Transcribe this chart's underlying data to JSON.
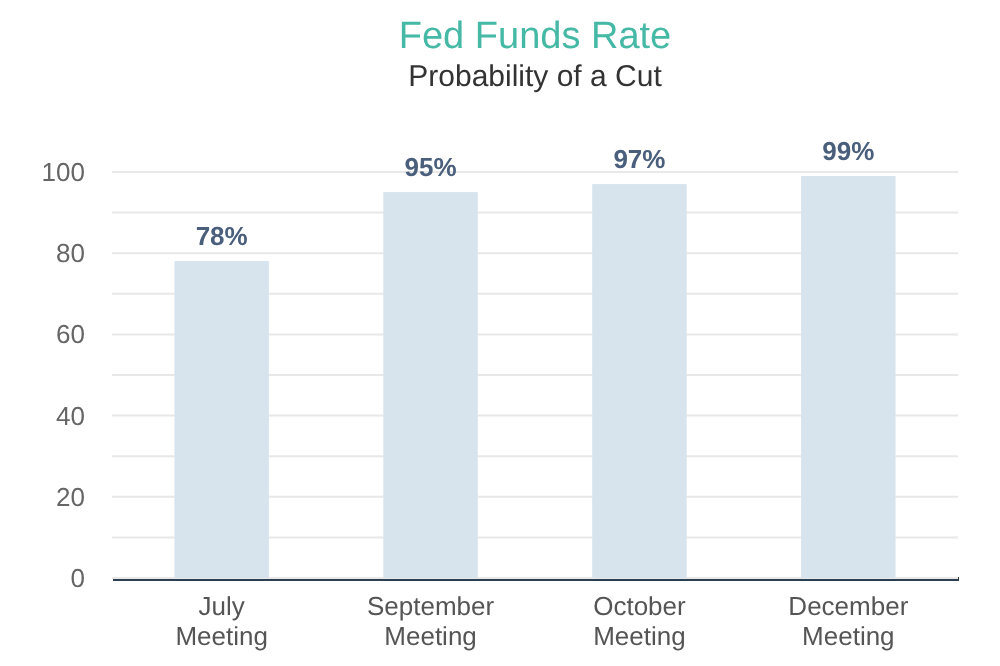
{
  "chart_data": {
    "type": "bar",
    "title": "Fed Funds Rate",
    "subtitle": "Probability of a Cut",
    "categories": [
      "July Meeting",
      "September Meeting",
      "October Meeting",
      "December Meeting"
    ],
    "values": [
      78,
      95,
      97,
      99
    ],
    "color": "#d7e4ee",
    "data_labels": true,
    "value_labels": [
      "78%",
      "95%",
      "97%",
      "99%"
    ],
    "ylim": [
      0,
      100
    ],
    "yticks": [
      0,
      {
        "value": 10,
        "label": null
      },
      20,
      {
        "value": 30,
        "label": null
      },
      40,
      {
        "value": 50,
        "label": null
      },
      60,
      {
        "value": 70,
        "label": null
      },
      80,
      {
        "value": 90,
        "label": null
      },
      100
    ],
    "grid": "y"
  }
}
